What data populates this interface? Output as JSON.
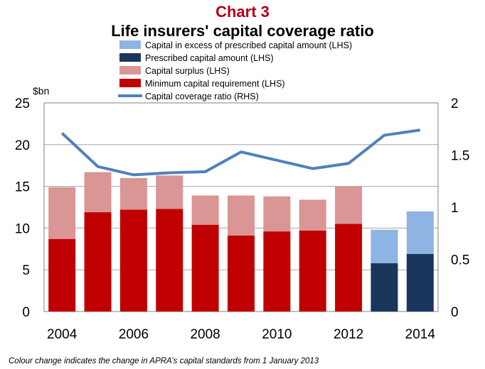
{
  "header": {
    "title": "Chart 3",
    "subtitle": "Life insurers' capital coverage ratio"
  },
  "chart_data": {
    "type": "bar",
    "stacked": true,
    "x": [
      2004,
      2005,
      2006,
      2007,
      2008,
      2009,
      2010,
      2011,
      2012,
      2013,
      2014
    ],
    "x_tick_labels": [
      "2004",
      "2006",
      "2008",
      "2010",
      "2012",
      "2014"
    ],
    "ylabel": "$bn",
    "ylim": [
      0,
      25
    ],
    "y_ticks": [
      "0",
      "5",
      "10",
      "15",
      "20",
      "25"
    ],
    "y2lim": [
      0,
      2
    ],
    "y2_ticks": [
      "0",
      "0.5",
      "1",
      "1.5",
      "2"
    ],
    "grid": true,
    "legend_position": "top",
    "series": [
      {
        "name": "Capital in excess of prescribed capital amount (LHS)",
        "kind": "bar",
        "axis": "left",
        "color": "#8db4e2",
        "values": [
          null,
          null,
          null,
          null,
          null,
          null,
          null,
          null,
          null,
          4.0,
          5.1
        ]
      },
      {
        "name": "Prescribed capital amount (LHS)",
        "kind": "bar",
        "axis": "left",
        "color": "#1b365d",
        "values": [
          null,
          null,
          null,
          null,
          null,
          null,
          null,
          null,
          null,
          5.8,
          6.9
        ]
      },
      {
        "name": "Capital surplus (LHS)",
        "kind": "bar",
        "axis": "left",
        "color": "#d99694",
        "values": [
          6.2,
          4.8,
          3.8,
          4.0,
          3.5,
          4.8,
          4.2,
          3.7,
          4.5,
          null,
          null
        ]
      },
      {
        "name": "Minimum capital requirement (LHS)",
        "kind": "bar",
        "axis": "left",
        "color": "#c00000",
        "values": [
          8.7,
          11.9,
          12.2,
          12.3,
          10.4,
          9.1,
          9.6,
          9.7,
          10.5,
          null,
          null
        ]
      },
      {
        "name": "Capital coverage ratio (RHS)",
        "kind": "line",
        "axis": "right",
        "color": "#4f81bd",
        "values": [
          1.71,
          1.39,
          1.31,
          1.33,
          1.34,
          1.53,
          1.45,
          1.37,
          1.42,
          1.69,
          1.74
        ]
      }
    ]
  },
  "footnote": "Colour change indicates the change in APRA’s capital standards from 1 January 2013"
}
